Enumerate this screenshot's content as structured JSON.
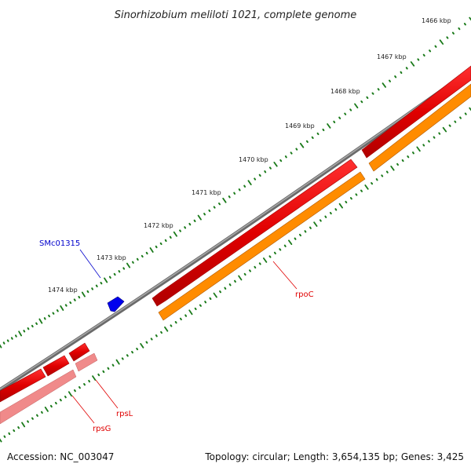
{
  "title": "Sinorhizobium meliloti 1021, complete genome",
  "footer": {
    "accession": "Accession: NC_003047",
    "summary": "Topology: circular; Length: 3,654,135 bp; Genes: 3,425"
  },
  "ticks": [
    {
      "label": "1466 kbp"
    },
    {
      "label": "1467 kbp"
    },
    {
      "label": "1468 kbp"
    },
    {
      "label": "1469 kbp"
    },
    {
      "label": "1470 kbp"
    },
    {
      "label": "1471 kbp"
    },
    {
      "label": "1472 kbp"
    },
    {
      "label": "1473 kbp"
    },
    {
      "label": "1474 kbp"
    }
  ],
  "genes": [
    {
      "name": "SMc01315",
      "color": "#0000cc"
    },
    {
      "name": "rpoC",
      "color": "#e00000"
    },
    {
      "name": "rpsL",
      "color": "#e00000"
    },
    {
      "name": "rpsG",
      "color": "#e00000"
    }
  ],
  "colors": {
    "backbone": "#7a7a7a",
    "cds_forward": "#ee0000",
    "cds_pink": "#f08080",
    "rna_orange": "#ff8c00",
    "tick": "#1a7a1a"
  }
}
